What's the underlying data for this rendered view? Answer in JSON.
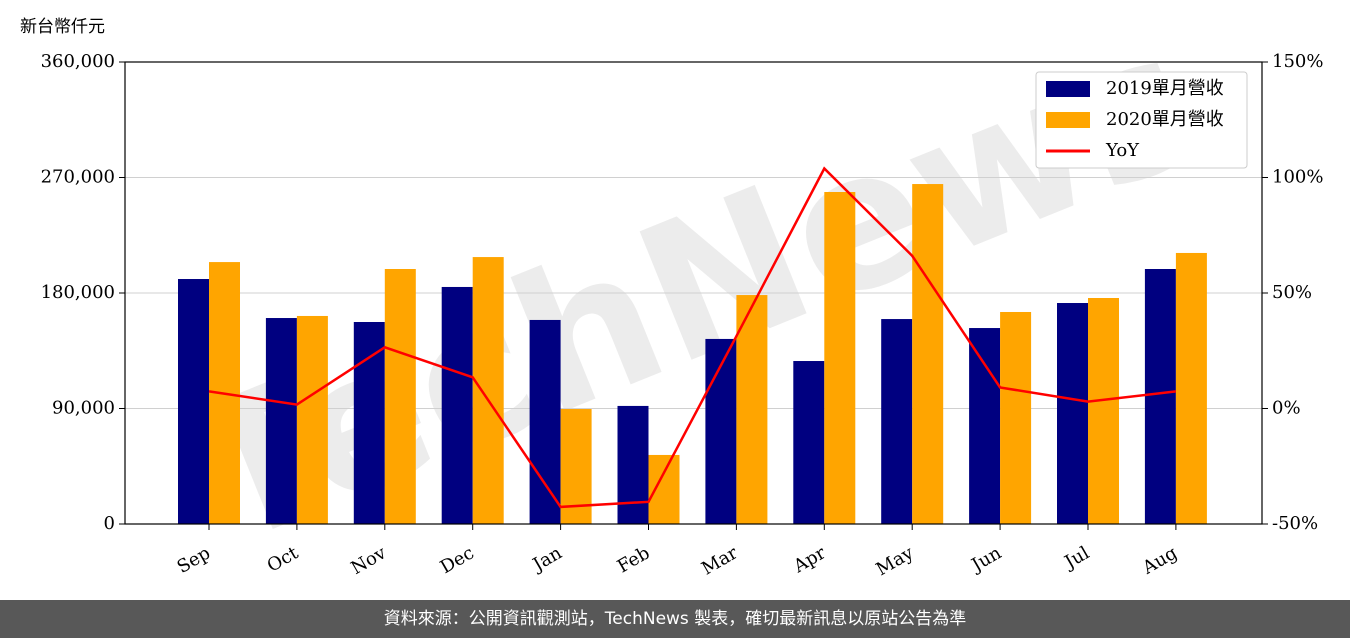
{
  "chart_data": {
    "type": "bar-line",
    "watermark": "TechNews",
    "y_label": "新台幣仟元",
    "categories": [
      "Sep",
      "Oct",
      "Nov",
      "Dec",
      "Jan",
      "Feb",
      "Mar",
      "Apr",
      "May",
      "Jun",
      "Jul",
      "Aug"
    ],
    "series": [
      {
        "name": "2019單月營收",
        "color": "#000080",
        "kind": "bar",
        "values": [
          190900,
          160500,
          157400,
          184700,
          159000,
          92000,
          144200,
          127000,
          159700,
          152700,
          172200,
          198700
        ]
      },
      {
        "name": "2020單月營收",
        "color": "#ffa500",
        "kind": "bar",
        "values": [
          204100,
          162100,
          198700,
          208000,
          89600,
          53800,
          178400,
          258700,
          264900,
          165200,
          176100,
          211200
        ]
      },
      {
        "name": "YoY",
        "color": "#ff0000",
        "kind": "line",
        "axis": "y2",
        "values": [
          7.4,
          1.7,
          26.5,
          13.5,
          -42.6,
          -40.4,
          31.3,
          103.9,
          66.1,
          9.1,
          3.0,
          7.4
        ]
      }
    ],
    "ylim": [
      0,
      360000
    ],
    "yticks": [
      0,
      {
        "value": 90000,
        "label": "90,000"
      },
      {
        "value": 180000,
        "label": "180,000"
      },
      {
        "value": 270000,
        "label": "270,000"
      },
      {
        "value": 360000,
        "label": "360,000"
      }
    ],
    "y2lim": [
      -50,
      150
    ],
    "y2ticks": [
      {
        "value": -50,
        "label": "-50%"
      },
      {
        "value": 0,
        "label": "0%"
      },
      {
        "value": 50,
        "label": "50%"
      },
      {
        "value": 100,
        "label": "100%"
      },
      {
        "value": 150,
        "label": "150%"
      }
    ],
    "grid": true,
    "legend": "upper right",
    "footer": "資料來源：公開資訊觀測站，TechNews 製表，確切最新訊息以原站公告為準"
  }
}
